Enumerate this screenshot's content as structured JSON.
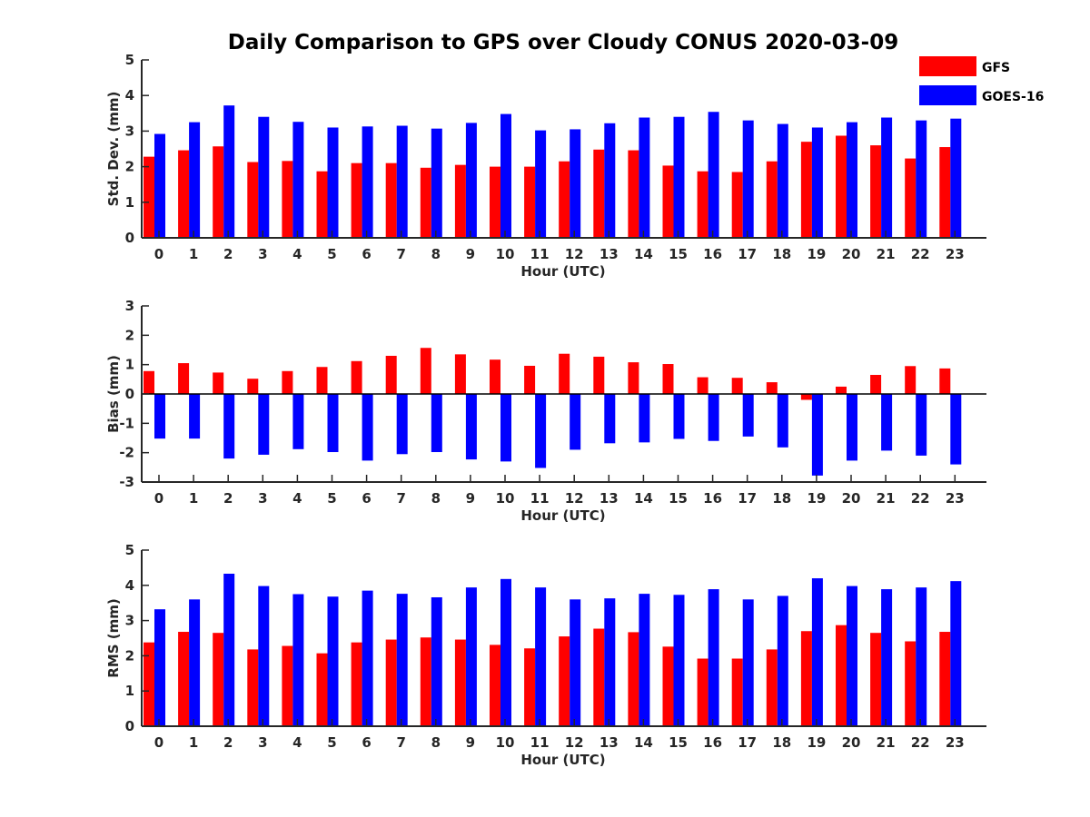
{
  "figure": {
    "title": "Daily Comparison to GPS over Cloudy CONUS 2020-03-09"
  },
  "legend": {
    "placement": "top-right",
    "items": [
      {
        "label": "GFS",
        "color": "#ff0000"
      },
      {
        "label": "GOES-16",
        "color": "#0000ff"
      }
    ]
  },
  "chart_data": [
    {
      "type": "bar",
      "xlabel": "Hour (UTC)",
      "ylabel": "Std. Dev. (mm)",
      "ylim": [
        0,
        5
      ],
      "yticks": [
        0,
        1,
        2,
        3,
        4,
        5
      ],
      "categories": [
        "0",
        "1",
        "2",
        "3",
        "4",
        "5",
        "6",
        "7",
        "8",
        "9",
        "10",
        "11",
        "12",
        "13",
        "14",
        "15",
        "16",
        "17",
        "18",
        "19",
        "20",
        "21",
        "22",
        "23"
      ],
      "series": [
        {
          "name": "GFS",
          "color": "#ff0000",
          "values": [
            2.28,
            2.46,
            2.57,
            2.13,
            2.16,
            1.87,
            2.1,
            2.1,
            1.97,
            2.05,
            2.0,
            2.0,
            2.15,
            2.48,
            2.46,
            2.03,
            1.87,
            1.85,
            2.15,
            2.7,
            2.87,
            2.6,
            2.23,
            2.55
          ]
        },
        {
          "name": "GOES-16",
          "color": "#0000ff",
          "values": [
            2.92,
            3.25,
            3.72,
            3.4,
            3.26,
            3.1,
            3.13,
            3.15,
            3.07,
            3.23,
            3.48,
            3.02,
            3.05,
            3.22,
            3.38,
            3.4,
            3.54,
            3.3,
            3.2,
            3.1,
            3.25,
            3.38,
            3.3,
            3.35
          ]
        }
      ]
    },
    {
      "type": "bar",
      "xlabel": "Hour (UTC)",
      "ylabel": "Bias (mm)",
      "ylim": [
        -3,
        3
      ],
      "yticks": [
        -3,
        -2,
        -1,
        0,
        1,
        2,
        3
      ],
      "zero_line": true,
      "categories": [
        "0",
        "1",
        "2",
        "3",
        "4",
        "5",
        "6",
        "7",
        "8",
        "9",
        "10",
        "11",
        "12",
        "13",
        "14",
        "15",
        "16",
        "17",
        "18",
        "19",
        "20",
        "21",
        "22",
        "23"
      ],
      "series": [
        {
          "name": "GFS",
          "color": "#ff0000",
          "values": [
            0.78,
            1.05,
            0.73,
            0.52,
            0.78,
            0.92,
            1.12,
            1.3,
            1.57,
            1.35,
            1.17,
            0.96,
            1.37,
            1.27,
            1.08,
            1.02,
            0.57,
            0.55,
            0.4,
            -0.2,
            0.25,
            0.65,
            0.95,
            0.87
          ]
        },
        {
          "name": "GOES-16",
          "color": "#0000ff",
          "values": [
            -1.52,
            -1.52,
            -2.2,
            -2.07,
            -1.88,
            -1.98,
            -2.27,
            -2.05,
            -1.98,
            -2.23,
            -2.3,
            -2.52,
            -1.9,
            -1.68,
            -1.65,
            -1.53,
            -1.6,
            -1.45,
            -1.82,
            -2.78,
            -2.27,
            -1.93,
            -2.1,
            -2.4
          ]
        }
      ]
    },
    {
      "type": "bar",
      "xlabel": "Hour (UTC)",
      "ylabel": "RMS (mm)",
      "ylim": [
        0,
        5
      ],
      "yticks": [
        0,
        1,
        2,
        3,
        4,
        5
      ],
      "categories": [
        "0",
        "1",
        "2",
        "3",
        "4",
        "5",
        "6",
        "7",
        "8",
        "9",
        "10",
        "11",
        "12",
        "13",
        "14",
        "15",
        "16",
        "17",
        "18",
        "19",
        "20",
        "21",
        "22",
        "23"
      ],
      "series": [
        {
          "name": "GFS",
          "color": "#ff0000",
          "values": [
            2.38,
            2.68,
            2.65,
            2.18,
            2.28,
            2.07,
            2.38,
            2.46,
            2.52,
            2.46,
            2.31,
            2.21,
            2.55,
            2.77,
            2.67,
            2.26,
            1.92,
            1.92,
            2.18,
            2.7,
            2.87,
            2.65,
            2.41,
            2.68
          ]
        },
        {
          "name": "GOES-16",
          "color": "#0000ff",
          "values": [
            3.32,
            3.6,
            4.33,
            3.98,
            3.75,
            3.68,
            3.85,
            3.76,
            3.66,
            3.94,
            4.18,
            3.94,
            3.6,
            3.63,
            3.76,
            3.73,
            3.89,
            3.6,
            3.7,
            4.2,
            3.98,
            3.89,
            3.94,
            4.12
          ]
        }
      ]
    }
  ]
}
